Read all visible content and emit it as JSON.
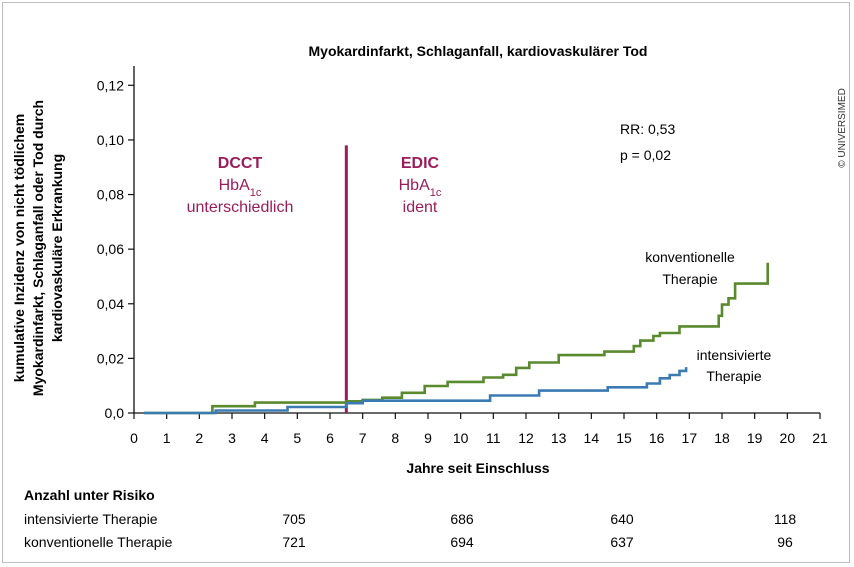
{
  "chart_data": {
    "type": "line",
    "title": "Myokardinfarkt, Schlaganfall, kardiovaskulärer Tod",
    "xlabel": "Jahre seit Einschluss",
    "ylabel_lines": [
      "kumulative Inzidenz von nicht tödlichem",
      "Myokardinfarkt, Schlaganfall oder Tod durch",
      "kardiovaskuläre Erkrankung"
    ],
    "xlim": [
      0,
      21
    ],
    "ylim": [
      0,
      0.13
    ],
    "x_ticks": [
      "0",
      "1",
      "2",
      "3",
      "4",
      "5",
      "6",
      "7",
      "8",
      "9",
      "10",
      "11",
      "12",
      "13",
      "14",
      "15",
      "16",
      "17",
      "18",
      "19",
      "20",
      "21"
    ],
    "y_ticks": [
      {
        "value": 0,
        "label": "0,0"
      },
      {
        "value": 0.02,
        "label": "0,02"
      },
      {
        "value": 0.04,
        "label": "0,04"
      },
      {
        "value": 0.06,
        "label": "0,06"
      },
      {
        "value": 0.08,
        "label": "0,08"
      },
      {
        "value": 0.1,
        "label": "0,10"
      },
      {
        "value": 0.12,
        "label": "0,12"
      }
    ],
    "divider_x": 6.5,
    "divider_top": 0.098,
    "era_left": {
      "head": "DCCT",
      "hba": "HbA",
      "sub": "1c",
      "desc": "unterschiedlich"
    },
    "era_right": {
      "head": "EDIC",
      "hba": "HbA",
      "sub": "1c",
      "desc": "ident"
    },
    "stats": [
      "RR: 0,53",
      "p = 0,02"
    ],
    "series": [
      {
        "name": "konventionelle Therapie",
        "label_lines": [
          "konventionelle",
          "Therapie"
        ],
        "color": "#5a8a2e",
        "x": [
          0.3,
          2.4,
          2.4,
          3.7,
          3.7,
          6.5,
          6.5,
          7.0,
          7.0,
          7.6,
          7.6,
          8.2,
          8.2,
          8.9,
          8.9,
          9.6,
          9.6,
          10.7,
          10.7,
          11.3,
          11.3,
          11.7,
          11.7,
          12.1,
          12.1,
          13.0,
          13.0,
          14.4,
          14.4,
          15.3,
          15.3,
          15.5,
          15.5,
          15.9,
          15.9,
          16.1,
          16.1,
          16.7,
          16.7,
          17.9,
          17.9,
          18.0,
          18.0,
          18.2,
          18.2,
          18.4,
          18.4,
          19.4,
          19.4
        ],
        "y": [
          0,
          0,
          0.0025,
          0.0025,
          0.0038,
          0.0038,
          0.0043,
          0.0043,
          0.0048,
          0.0048,
          0.0056,
          0.0056,
          0.0074,
          0.0074,
          0.0099,
          0.0099,
          0.0114,
          0.0114,
          0.013,
          0.013,
          0.014,
          0.014,
          0.0165,
          0.0165,
          0.0185,
          0.0185,
          0.0212,
          0.0212,
          0.0225,
          0.0225,
          0.0245,
          0.0245,
          0.0265,
          0.0265,
          0.0282,
          0.0282,
          0.0293,
          0.0293,
          0.0317,
          0.0317,
          0.0356,
          0.0356,
          0.0397,
          0.0397,
          0.042,
          0.042,
          0.0474,
          0.0474,
          0.055
        ]
      },
      {
        "name": "intensivierte Therapie",
        "label_lines": [
          "intensivierte",
          "Therapie"
        ],
        "color": "#3b7bb3",
        "x": [
          0.3,
          2.5,
          2.5,
          4.7,
          4.7,
          6.5,
          6.5,
          7.0,
          7.0,
          10.9,
          10.9,
          12.4,
          12.4,
          14.5,
          14.5,
          15.7,
          15.7,
          16.1,
          16.1,
          16.4,
          16.4,
          16.7,
          16.7,
          16.9,
          16.9
        ],
        "y": [
          0,
          0,
          0.0009,
          0.0009,
          0.0022,
          0.0022,
          0.0036,
          0.0036,
          0.0045,
          0.0045,
          0.0064,
          0.0064,
          0.0082,
          0.0082,
          0.0094,
          0.0094,
          0.0108,
          0.0108,
          0.0127,
          0.0127,
          0.0139,
          0.0139,
          0.0154,
          0.0154,
          0.0168
        ]
      }
    ]
  },
  "risk_table": {
    "title": "Anzahl unter Risiko",
    "rows": [
      {
        "label": "intensivierte Therapie",
        "values": [
          "705",
          "686",
          "640",
          "118"
        ]
      },
      {
        "label": "konventionelle Therapie",
        "values": [
          "721",
          "694",
          "637",
          "96"
        ]
      }
    ]
  },
  "copyright": "© UNIVERSIMED"
}
